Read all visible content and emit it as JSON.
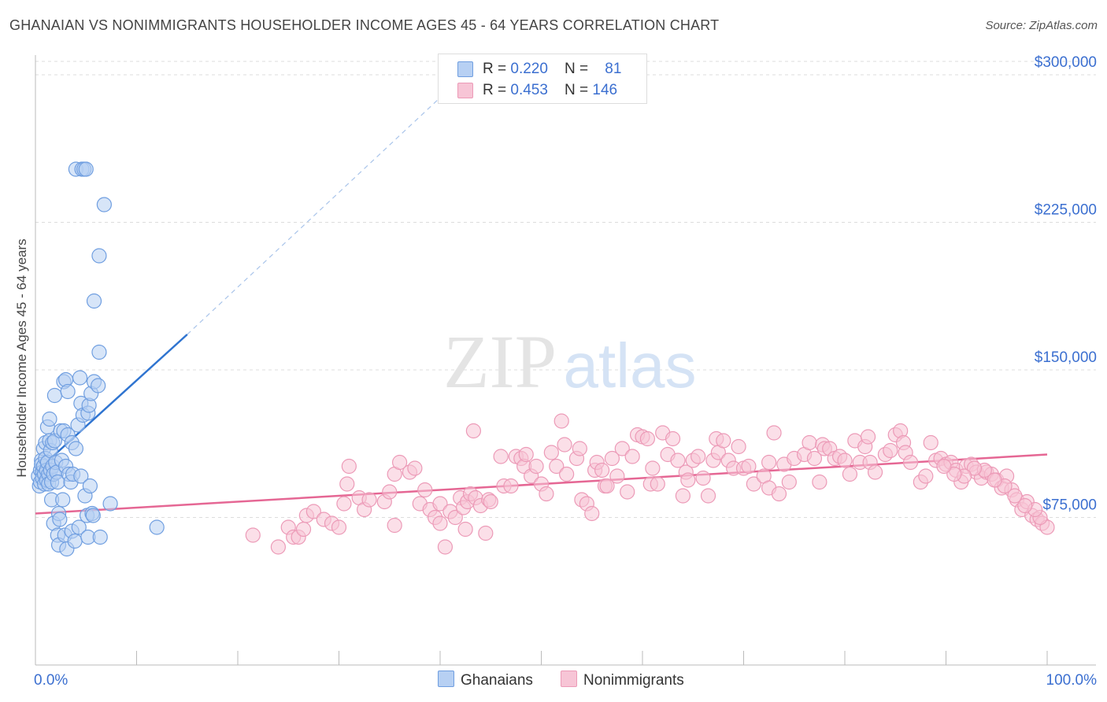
{
  "title": "GHANAIAN VS NONIMMIGRANTS HOUSEHOLDER INCOME AGES 45 - 64 YEARS CORRELATION CHART",
  "source": "Source: ZipAtlas.com",
  "watermark": {
    "zip": "ZIP",
    "atlas": "atlas"
  },
  "colors": {
    "ghanaians_fill": "#b7d0f3",
    "ghanaians_stroke": "#6f9ee0",
    "ghanaians_line": "#2f74d0",
    "nonimmigrants_fill": "#f7c5d6",
    "nonimmigrants_stroke": "#ec9ab7",
    "nonimmigrants_line": "#e56794",
    "axis_label": "#3b6fd0",
    "grid": "#dcdcdc"
  },
  "legend": {
    "ghanaians": {
      "r_label": "R = ",
      "r_value": "0.220",
      "n_label": "N = ",
      "n_value": "81"
    },
    "nonimmigrants": {
      "r_label": "R = ",
      "r_value": "0.453",
      "n_label": "N = ",
      "n_value": "146"
    }
  },
  "bottom_legend": {
    "ghanaians": "Ghanaians",
    "nonimmigrants": "Nonimmigrants"
  },
  "chart_data": {
    "type": "scatter",
    "xlabel": "",
    "ylabel": "Householder Income Ages 45 - 64 years",
    "xlim": [
      0,
      100
    ],
    "ylim": [
      0,
      310000
    ],
    "x_tick_labels": [
      {
        "value": 0,
        "label": "0.0%"
      },
      {
        "value": 100,
        "label": "100.0%"
      }
    ],
    "y_ticks": [
      {
        "value": 75000,
        "label": "$75,000"
      },
      {
        "value": 150000,
        "label": "$150,000"
      },
      {
        "value": 225000,
        "label": "$225,000"
      },
      {
        "value": 300000,
        "label": "$300,000"
      }
    ],
    "x_minor_ticks": [
      10,
      20,
      30,
      40,
      50,
      60,
      70,
      80,
      90,
      100
    ],
    "grid": true,
    "legend_position": "top-center",
    "series": [
      {
        "name": "Ghanaians",
        "trend": {
          "x0": 0,
          "y0": 98000,
          "x1": 15,
          "y1": 168000,
          "dash_to_x": 42,
          "dash_to_y": 298000
        },
        "points": [
          [
            0.3,
            96000
          ],
          [
            0.4,
            91000
          ],
          [
            0.5,
            99000
          ],
          [
            0.5,
            93000
          ],
          [
            0.6,
            104000
          ],
          [
            0.6,
            102000
          ],
          [
            0.7,
            98000
          ],
          [
            0.7,
            95000
          ],
          [
            0.8,
            110000
          ],
          [
            0.8,
            101000
          ],
          [
            0.9,
            97000
          ],
          [
            0.9,
            92000
          ],
          [
            1.0,
            113000
          ],
          [
            1.0,
            105000
          ],
          [
            1.1,
            99000
          ],
          [
            1.1,
            94000
          ],
          [
            1.2,
            121000
          ],
          [
            1.2,
            103000
          ],
          [
            1.3,
            97000
          ],
          [
            1.3,
            92000
          ],
          [
            1.4,
            125000
          ],
          [
            1.4,
            114000
          ],
          [
            1.5,
            109000
          ],
          [
            1.5,
            99000
          ],
          [
            1.6,
            93000
          ],
          [
            1.6,
            84000
          ],
          [
            1.7,
            113000
          ],
          [
            1.7,
            101000
          ],
          [
            1.8,
            97000
          ],
          [
            1.8,
            72000
          ],
          [
            1.9,
            137000
          ],
          [
            1.9,
            114000
          ],
          [
            2.0,
            103000
          ],
          [
            2.1,
            98000
          ],
          [
            2.2,
            93000
          ],
          [
            2.2,
            66000
          ],
          [
            2.3,
            61000
          ],
          [
            2.3,
            77000
          ],
          [
            2.4,
            74000
          ],
          [
            2.5,
            119000
          ],
          [
            2.6,
            104000
          ],
          [
            2.7,
            84000
          ],
          [
            2.8,
            144000
          ],
          [
            2.8,
            119000
          ],
          [
            2.9,
            66000
          ],
          [
            3.0,
            145000
          ],
          [
            3.0,
            101000
          ],
          [
            3.1,
            59000
          ],
          [
            3.2,
            139000
          ],
          [
            3.2,
            117000
          ],
          [
            3.3,
            97000
          ],
          [
            3.5,
            93000
          ],
          [
            3.6,
            113000
          ],
          [
            3.6,
            68000
          ],
          [
            3.7,
            97000
          ],
          [
            3.9,
            63000
          ],
          [
            4.0,
            252000
          ],
          [
            4.0,
            110000
          ],
          [
            4.2,
            122000
          ],
          [
            4.3,
            70000
          ],
          [
            4.4,
            146000
          ],
          [
            4.5,
            133000
          ],
          [
            4.5,
            96000
          ],
          [
            4.6,
            252000
          ],
          [
            4.7,
            127000
          ],
          [
            4.8,
            252000
          ],
          [
            4.9,
            86000
          ],
          [
            5.0,
            252000
          ],
          [
            5.1,
            76000
          ],
          [
            5.2,
            128000
          ],
          [
            5.2,
            65000
          ],
          [
            5.3,
            132000
          ],
          [
            5.4,
            91000
          ],
          [
            5.5,
            138000
          ],
          [
            5.6,
            77000
          ],
          [
            5.7,
            76000
          ],
          [
            5.8,
            144000
          ],
          [
            5.8,
            185000
          ],
          [
            6.2,
            142000
          ],
          [
            6.3,
            208000
          ],
          [
            6.3,
            159000
          ],
          [
            6.4,
            65000
          ],
          [
            6.8,
            234000
          ],
          [
            7.4,
            82000
          ],
          [
            12.0,
            70000
          ]
        ]
      },
      {
        "name": "Nonimmigrants",
        "trend": {
          "x0": 0,
          "y0": 77000,
          "x1": 100,
          "y1": 107000
        },
        "points": [
          [
            21.5,
            66000
          ],
          [
            24.0,
            60000
          ],
          [
            25.0,
            70000
          ],
          [
            25.5,
            65000
          ],
          [
            26.0,
            65000
          ],
          [
            26.5,
            69000
          ],
          [
            26.8,
            76000
          ],
          [
            27.5,
            78000
          ],
          [
            28.5,
            74000
          ],
          [
            29.3,
            72000
          ],
          [
            30.0,
            70000
          ],
          [
            30.5,
            82000
          ],
          [
            30.8,
            92000
          ],
          [
            31.0,
            101000
          ],
          [
            32.0,
            85000
          ],
          [
            32.5,
            79000
          ],
          [
            33.0,
            84000
          ],
          [
            34.5,
            83000
          ],
          [
            35.0,
            88000
          ],
          [
            35.5,
            71000
          ],
          [
            35.5,
            97000
          ],
          [
            36.0,
            103000
          ],
          [
            37.0,
            98000
          ],
          [
            37.5,
            100000
          ],
          [
            38.0,
            82000
          ],
          [
            38.5,
            89000
          ],
          [
            39.0,
            79000
          ],
          [
            39.5,
            75000
          ],
          [
            40.0,
            82000
          ],
          [
            40.0,
            72000
          ],
          [
            40.5,
            60000
          ],
          [
            41.0,
            78000
          ],
          [
            41.5,
            75000
          ],
          [
            42.0,
            85000
          ],
          [
            42.3,
            80000
          ],
          [
            42.5,
            69000
          ],
          [
            42.7,
            83000
          ],
          [
            43.0,
            87000
          ],
          [
            43.3,
            119000
          ],
          [
            43.5,
            85000
          ],
          [
            44.0,
            81000
          ],
          [
            44.5,
            67000
          ],
          [
            44.8,
            84000
          ],
          [
            45.0,
            83000
          ],
          [
            46.0,
            106000
          ],
          [
            46.3,
            91000
          ],
          [
            47.0,
            91000
          ],
          [
            47.5,
            106000
          ],
          [
            48.0,
            105000
          ],
          [
            48.3,
            101000
          ],
          [
            48.5,
            107000
          ],
          [
            49.0,
            96000
          ],
          [
            49.5,
            101000
          ],
          [
            50.0,
            92000
          ],
          [
            50.5,
            87000
          ],
          [
            51.0,
            108000
          ],
          [
            51.5,
            101000
          ],
          [
            52.0,
            124000
          ],
          [
            52.3,
            112000
          ],
          [
            52.5,
            97000
          ],
          [
            53.5,
            105000
          ],
          [
            53.8,
            110000
          ],
          [
            54.0,
            84000
          ],
          [
            54.5,
            82000
          ],
          [
            55.0,
            77000
          ],
          [
            55.3,
            99000
          ],
          [
            55.5,
            103000
          ],
          [
            56.0,
            99000
          ],
          [
            56.3,
            91000
          ],
          [
            56.5,
            91000
          ],
          [
            57.0,
            105000
          ],
          [
            57.5,
            96000
          ],
          [
            58.0,
            110000
          ],
          [
            58.5,
            88000
          ],
          [
            59.0,
            106000
          ],
          [
            59.5,
            117000
          ],
          [
            60.0,
            116000
          ],
          [
            60.5,
            115000
          ],
          [
            60.8,
            92000
          ],
          [
            61.0,
            100000
          ],
          [
            61.5,
            92000
          ],
          [
            62.0,
            118000
          ],
          [
            62.5,
            107000
          ],
          [
            63.0,
            115000
          ],
          [
            63.5,
            104000
          ],
          [
            64.0,
            86000
          ],
          [
            64.3,
            98000
          ],
          [
            64.5,
            94000
          ],
          [
            65.0,
            104000
          ],
          [
            65.5,
            106000
          ],
          [
            66.0,
            95000
          ],
          [
            66.5,
            86000
          ],
          [
            67.0,
            104000
          ],
          [
            67.3,
            115000
          ],
          [
            67.5,
            108000
          ],
          [
            68.0,
            114000
          ],
          [
            68.5,
            104000
          ],
          [
            69.0,
            100000
          ],
          [
            69.5,
            111000
          ],
          [
            70.0,
            100000
          ],
          [
            70.5,
            101000
          ],
          [
            71.0,
            92000
          ],
          [
            72.0,
            96000
          ],
          [
            72.5,
            90000
          ],
          [
            72.5,
            103000
          ],
          [
            73.0,
            118000
          ],
          [
            73.5,
            87000
          ],
          [
            74.0,
            102000
          ],
          [
            74.5,
            93000
          ],
          [
            75.0,
            105000
          ],
          [
            76.0,
            107000
          ],
          [
            76.5,
            113000
          ],
          [
            77.0,
            105000
          ],
          [
            77.5,
            93000
          ],
          [
            77.8,
            112000
          ],
          [
            78.0,
            110000
          ],
          [
            78.5,
            110000
          ],
          [
            79.0,
            105000
          ],
          [
            79.5,
            106000
          ],
          [
            80.0,
            104000
          ],
          [
            80.5,
            97000
          ],
          [
            81.0,
            114000
          ],
          [
            81.5,
            103000
          ],
          [
            82.0,
            111000
          ],
          [
            82.3,
            116000
          ],
          [
            82.5,
            103000
          ],
          [
            83.0,
            98000
          ],
          [
            84.0,
            107000
          ],
          [
            84.5,
            109000
          ],
          [
            85.0,
            117000
          ],
          [
            85.5,
            119000
          ],
          [
            85.8,
            113000
          ],
          [
            86.0,
            108000
          ],
          [
            86.5,
            103000
          ],
          [
            87.5,
            93000
          ],
          [
            88.0,
            96000
          ],
          [
            88.5,
            113000
          ],
          [
            89.0,
            104000
          ],
          [
            89.5,
            105000
          ],
          [
            90.0,
            102000
          ],
          [
            90.5,
            103000
          ],
          [
            91.0,
            99000
          ],
          [
            91.5,
            93000
          ],
          [
            92.0,
            101000
          ],
          [
            92.5,
            102000
          ],
          [
            93.0,
            98000
          ],
          [
            93.5,
            95000
          ],
          [
            94.0,
            98000
          ],
          [
            94.5,
            97000
          ],
          [
            95.0,
            94000
          ],
          [
            95.5,
            90000
          ],
          [
            96.0,
            96000
          ],
          [
            96.5,
            89000
          ],
          [
            97.0,
            84000
          ],
          [
            97.5,
            79000
          ],
          [
            98.0,
            83000
          ],
          [
            98.5,
            76000
          ],
          [
            99.0,
            74000
          ],
          [
            99.5,
            72000
          ],
          [
            100.0,
            70000
          ],
          [
            99.3,
            75000
          ],
          [
            98.8,
            79000
          ],
          [
            97.8,
            81000
          ],
          [
            96.8,
            86000
          ],
          [
            95.8,
            91000
          ],
          [
            94.8,
            94000
          ],
          [
            93.8,
            99000
          ],
          [
            92.8,
            100000
          ],
          [
            91.8,
            96000
          ],
          [
            90.8,
            97000
          ],
          [
            89.8,
            101000
          ]
        ]
      }
    ]
  }
}
